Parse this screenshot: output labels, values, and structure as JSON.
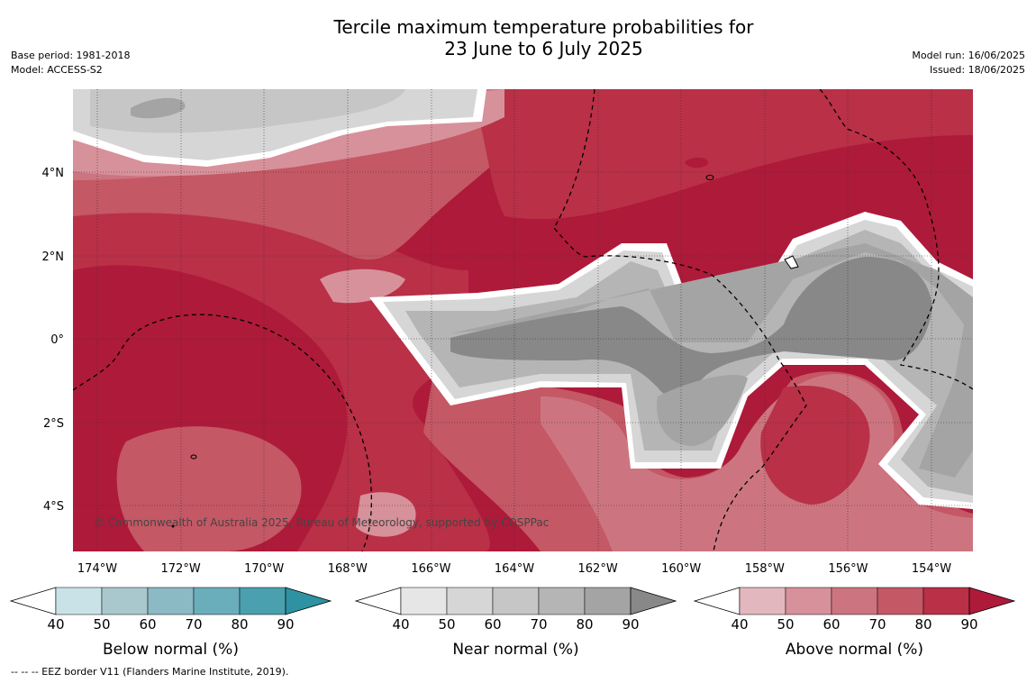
{
  "title": {
    "line1": "Tercile maximum temperature probabilities for",
    "line2": "23 June to 6 July 2025"
  },
  "meta": {
    "base_period": "Base period: 1981-2018",
    "model": "Model: ACCESS-S2",
    "model_run": "Model run: 16/06/2025",
    "issued": "Issued: 18/06/2025"
  },
  "map": {
    "copyright": "© Commonwealth of Australia 2025, Bureau of Meteorology, supported by COSPPac",
    "lat_labels": [
      "4°N",
      "2°N",
      "0°",
      "2°S",
      "4°S"
    ],
    "lon_labels": [
      "174°W",
      "172°W",
      "170°W",
      "168°W",
      "166°W",
      "164°W",
      "162°W",
      "160°W",
      "158°W",
      "156°W",
      "154°W"
    ]
  },
  "legend": {
    "ticks": [
      "40",
      "50",
      "60",
      "70",
      "80",
      "90"
    ],
    "below": {
      "title": "Below normal (%)",
      "colors": [
        "#c9e2e8",
        "#a9c8cd",
        "#8bb9c4",
        "#6aaebb",
        "#4aa0ae",
        "#2e92a2"
      ]
    },
    "near": {
      "title": "Near normal (%)",
      "colors": [
        "#e6e6e6",
        "#d6d6d6",
        "#c6c6c6",
        "#b5b5b5",
        "#a4a4a4",
        "#888888"
      ]
    },
    "above": {
      "title": "Above normal (%)",
      "colors": [
        "#e2b8be",
        "#d7919a",
        "#cc7580",
        "#c45865",
        "#b93047",
        "#ae1a3a"
      ]
    }
  },
  "footer": "--  --  -- EEZ border V11 (Flanders Marine Institute, 2019)."
}
